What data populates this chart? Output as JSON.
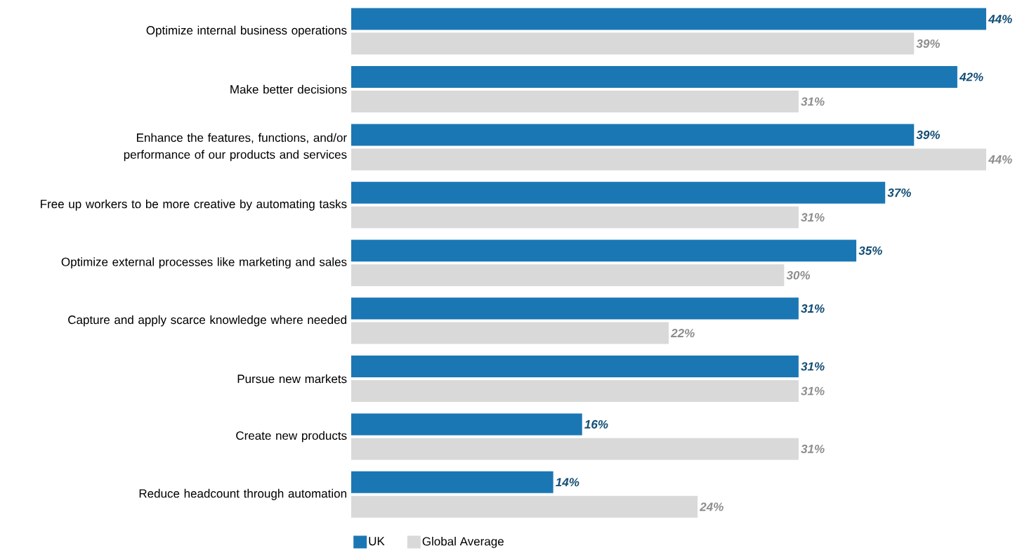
{
  "chart_data": {
    "type": "bar",
    "orientation": "horizontal",
    "legend": "bottom left",
    "categories": [
      "Optimize internal business operations",
      "Make better decisions",
      "Enhance the features, functions, and/or performance of our products and services",
      "Free up workers to be more creative by automating tasks",
      "Optimize external processes like marketing and sales",
      "Capture and apply scarce knowledge where needed",
      "Pursue new markets",
      "Create new products",
      "Reduce headcount through automation"
    ],
    "series": [
      {
        "name": "UK",
        "color": "#1b77b4",
        "values": [
          44,
          42,
          39,
          37,
          35,
          31,
          31,
          16,
          14
        ],
        "value_labels": [
          "44%",
          "42%",
          "39%",
          "37%",
          "35%",
          "31%",
          "31%",
          "16%",
          "14%"
        ]
      },
      {
        "name": "Global Average",
        "color": "#d9d9d9",
        "values": [
          39,
          31,
          44,
          31,
          30,
          22,
          31,
          31,
          24
        ],
        "value_labels": [
          "39%",
          "31%",
          "44%",
          "31%",
          "30%",
          "22%",
          "31%",
          "31%",
          "24%"
        ]
      }
    ]
  }
}
